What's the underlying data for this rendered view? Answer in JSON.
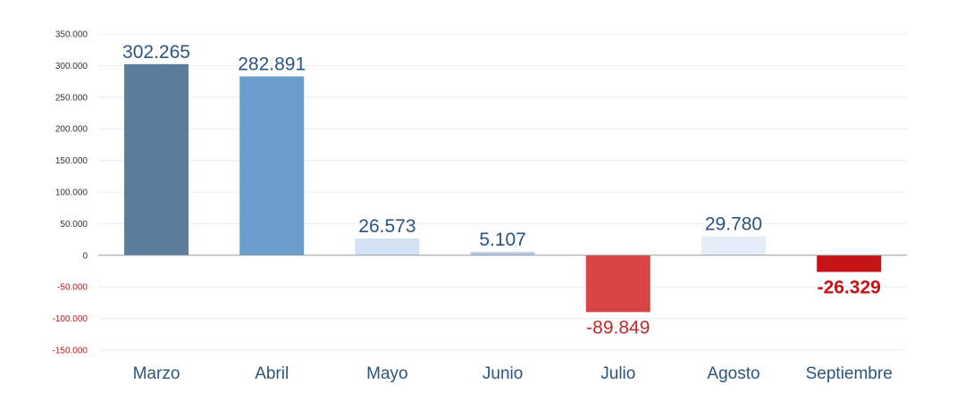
{
  "chart_data": {
    "type": "bar",
    "categories": [
      "Marzo",
      "Abril",
      "Mayo",
      "Junio",
      "Julio",
      "Agosto",
      "Septiembre"
    ],
    "values": [
      302265,
      282891,
      26573,
      5107,
      -89849,
      29780,
      -26329
    ],
    "data_labels": [
      "302.265",
      "282.891",
      "26.573",
      "5.107",
      "-89.849",
      "29.780",
      "-26.329"
    ],
    "bar_colors": [
      "#5c7d9b",
      "#6a9ccc",
      "#d3e2f2",
      "#b4c6ea",
      "#d94545",
      "#e4edf7",
      "#c41418"
    ],
    "label_colors": [
      "#2a5580",
      "#2a5580",
      "#2a5580",
      "#2a5580",
      "#c02a2a",
      "#2a5580",
      "#c41418"
    ],
    "label_bold": [
      false,
      false,
      false,
      false,
      false,
      false,
      true
    ],
    "yticks": [
      350000,
      300000,
      250000,
      200000,
      150000,
      100000,
      50000,
      0,
      -50000,
      -100000,
      -150000
    ],
    "ytick_labels": [
      "350.000",
      "300.000",
      "250.000",
      "200.000",
      "150.000",
      "100.000",
      "50.000",
      "0",
      "-50.000",
      "-100.000",
      "-150.000"
    ],
    "ylim": [
      -150000,
      350000
    ],
    "grid": true,
    "title": "",
    "xlabel": "",
    "ylabel": "",
    "colors": {
      "positive_tick": "#333333",
      "negative_tick": "#c41418",
      "grid": "#ececec",
      "zero_line": "#9a9a9a"
    }
  }
}
